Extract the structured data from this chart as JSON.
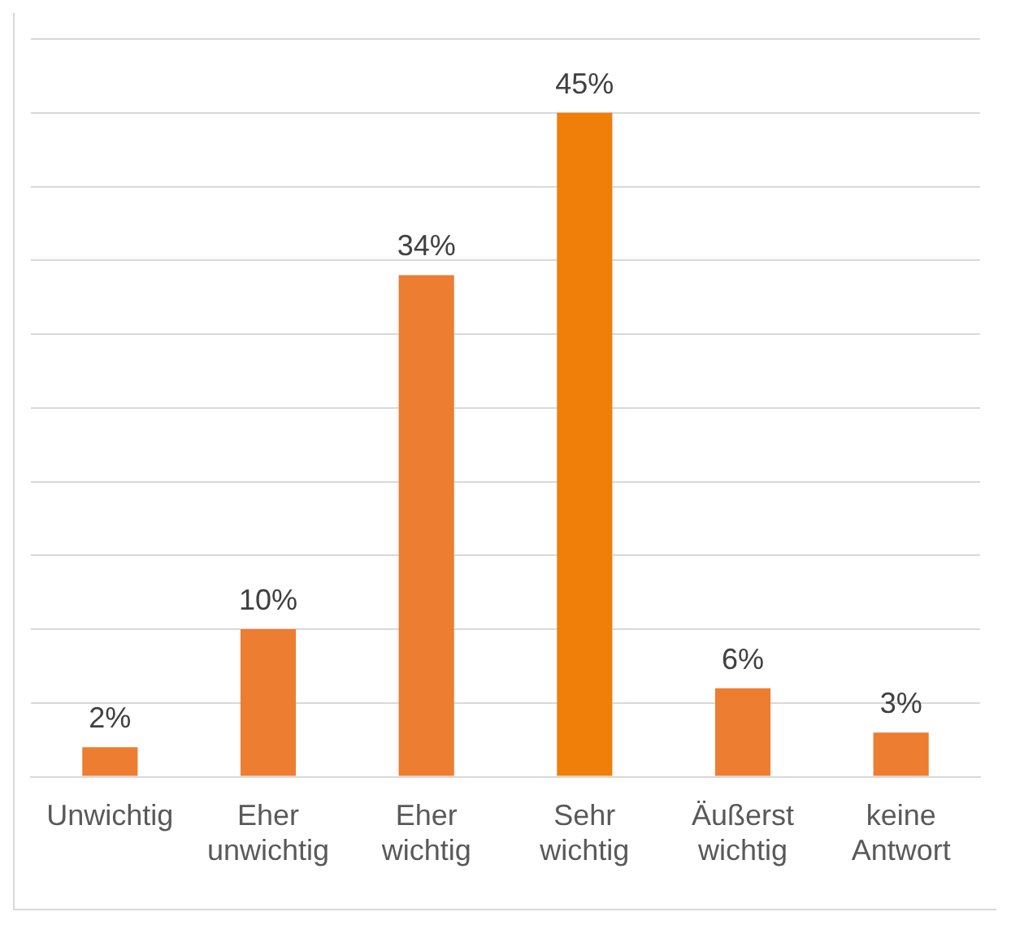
{
  "chart_data": {
    "type": "bar",
    "categories": [
      "Unwichtig",
      "Eher unwichtig",
      "Eher wichtig",
      "Sehr wichtig",
      "Äußerst wichtig",
      "keine Antwort"
    ],
    "values": [
      2,
      10,
      34,
      45,
      6,
      3
    ],
    "value_labels": [
      "2%",
      "10%",
      "34%",
      "45%",
      "6%",
      "3%"
    ],
    "colors": [
      "#ed7d31",
      "#ed7d31",
      "#ed7d31",
      "#f07f09",
      "#ed7d31",
      "#ed7d31"
    ],
    "ylim": [
      0,
      50
    ],
    "yticks": [
      {
        "value": 0,
        "label": null
      },
      {
        "value": 5,
        "label": null
      },
      {
        "value": 10,
        "label": null
      },
      {
        "value": 15,
        "label": null
      },
      {
        "value": 20,
        "label": null
      },
      {
        "value": 25,
        "label": null
      },
      {
        "value": 30,
        "label": null
      },
      {
        "value": 35,
        "label": null
      },
      {
        "value": 40,
        "label": null
      },
      {
        "value": 45,
        "label": null
      },
      {
        "value": 50,
        "label": null
      }
    ],
    "grid": "y",
    "tick_labels": "x",
    "legend": false
  }
}
